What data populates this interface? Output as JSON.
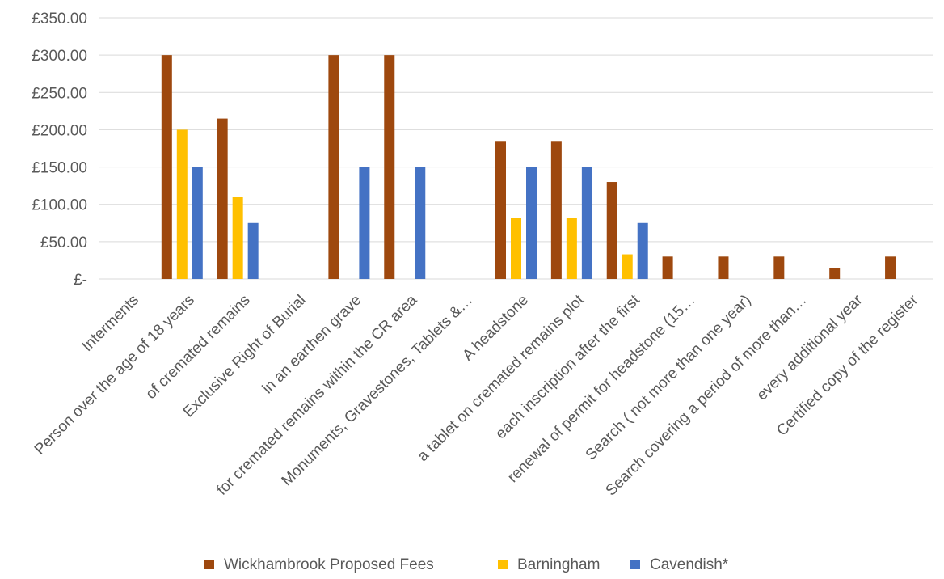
{
  "chart_data": {
    "type": "bar",
    "categories": [
      "Interments",
      "Person over the age of 18 years",
      "of cremated remains",
      "Exclusive Right of Burial",
      "in an earthen grave",
      "for cremated remains within the CR area",
      "Monuments, Gravestones, Tablets &…",
      "A headstone",
      "a tablet on cremated remains plot",
      "each inscription after the first",
      "renewal of permit for headstone (15…",
      "Search ( not more than one year)",
      "Search covering a period of more than…",
      "every additional year",
      "Certified copy of the register"
    ],
    "series": [
      {
        "name": "Wickhambrook Proposed Fees",
        "color": "#9E480E",
        "values": [
          0,
          300,
          215,
          0,
          300,
          300,
          0,
          185,
          185,
          130,
          30,
          30,
          30,
          15,
          30
        ]
      },
      {
        "name": "Barningham",
        "color": "#FFC000",
        "values": [
          0,
          200,
          110,
          0,
          0,
          0,
          0,
          82,
          82,
          33,
          0,
          0,
          0,
          0,
          0
        ]
      },
      {
        "name": "Cavendish*",
        "color": "#4472C4",
        "values": [
          0,
          150,
          75,
          0,
          150,
          150,
          0,
          150,
          150,
          75,
          0,
          0,
          0,
          0,
          0
        ]
      }
    ],
    "yticks": [
      "£-",
      "£50.00",
      "£100.00",
      "£150.00",
      "£200.00",
      "£250.00",
      "£300.00",
      "£350.00"
    ],
    "ylim": [
      0,
      350
    ],
    "ystep": 50,
    "grid": true,
    "legend_position": "bottom"
  }
}
